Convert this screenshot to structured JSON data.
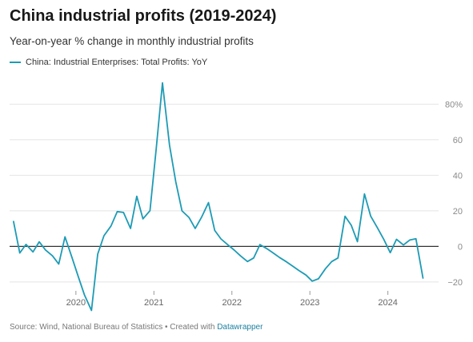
{
  "chart_data": {
    "type": "line",
    "title": "China industrial profits (2019-2024)",
    "subtitle": "Year-on-year % change in monthly industrial profits",
    "ylim": [
      -25,
      95
    ],
    "y_ticks": [
      {
        "value": 80,
        "label": "80%"
      },
      {
        "value": 60,
        "label": "60"
      },
      {
        "value": 40,
        "label": "40"
      },
      {
        "value": 20,
        "label": "20"
      },
      {
        "value": 0,
        "label": "0"
      },
      {
        "value": -20,
        "label": "−20"
      }
    ],
    "xlim": [
      2019.15,
      2024.65
    ],
    "x_ticks": [
      {
        "value": 2020.0,
        "label": "2020"
      },
      {
        "value": 2021.0,
        "label": "2021"
      },
      {
        "value": 2022.0,
        "label": "2022"
      },
      {
        "value": 2023.0,
        "label": "2023"
      },
      {
        "value": 2024.0,
        "label": "2024"
      }
    ],
    "grid": true,
    "legend_position": "top-left",
    "series": [
      {
        "name": "China: Industrial Enterprises: Total Profits: YoY",
        "color": "#1d9bb5",
        "points": [
          [
            2019.2,
            14.0
          ],
          [
            2019.28,
            -3.7
          ],
          [
            2019.36,
            1.1
          ],
          [
            2019.45,
            -3.1
          ],
          [
            2019.53,
            2.6
          ],
          [
            2019.61,
            -2.0
          ],
          [
            2019.7,
            -5.3
          ],
          [
            2019.78,
            -9.9
          ],
          [
            2019.86,
            5.4
          ],
          [
            2019.95,
            -6.3
          ],
          [
            2020.03,
            -17.0
          ],
          [
            2020.11,
            -27.4
          ],
          [
            2020.2,
            -36.0
          ],
          [
            2020.28,
            -4.3
          ],
          [
            2020.36,
            6.0
          ],
          [
            2020.45,
            11.5
          ],
          [
            2020.53,
            19.6
          ],
          [
            2020.61,
            19.1
          ],
          [
            2020.7,
            10.1
          ],
          [
            2020.78,
            28.2
          ],
          [
            2020.86,
            15.5
          ],
          [
            2020.95,
            20.1
          ],
          [
            2021.03,
            55.0
          ],
          [
            2021.11,
            92.0
          ],
          [
            2021.2,
            57.0
          ],
          [
            2021.28,
            36.4
          ],
          [
            2021.36,
            20.0
          ],
          [
            2021.45,
            16.3
          ],
          [
            2021.53,
            10.1
          ],
          [
            2021.61,
            16.3
          ],
          [
            2021.7,
            24.6
          ],
          [
            2021.78,
            9.0
          ],
          [
            2021.86,
            4.2
          ],
          [
            2021.95,
            0.8
          ],
          [
            2022.03,
            -2.1
          ],
          [
            2022.11,
            -5.3
          ],
          [
            2022.2,
            -8.5
          ],
          [
            2022.28,
            -6.5
          ],
          [
            2022.36,
            1.0
          ],
          [
            2022.45,
            -1.3
          ],
          [
            2022.53,
            -3.7
          ],
          [
            2022.61,
            -6.2
          ],
          [
            2022.7,
            -8.7
          ],
          [
            2022.78,
            -11.1
          ],
          [
            2022.86,
            -13.6
          ],
          [
            2022.95,
            -16.1
          ],
          [
            2023.03,
            -19.5
          ],
          [
            2023.11,
            -18.2
          ],
          [
            2023.2,
            -12.5
          ],
          [
            2023.28,
            -8.5
          ],
          [
            2023.36,
            -6.5
          ],
          [
            2023.45,
            17.0
          ],
          [
            2023.53,
            11.9
          ],
          [
            2023.61,
            2.7
          ],
          [
            2023.7,
            29.5
          ],
          [
            2023.78,
            17.0
          ],
          [
            2023.86,
            10.9
          ],
          [
            2023.95,
            3.7
          ],
          [
            2024.03,
            -3.5
          ],
          [
            2024.11,
            4.0
          ],
          [
            2024.2,
            0.8
          ],
          [
            2024.28,
            3.6
          ],
          [
            2024.36,
            4.3
          ],
          [
            2024.45,
            -17.8
          ]
        ]
      }
    ]
  },
  "footer": {
    "source": "Source: Wind, National Bureau of Statistics • Created with ",
    "link": "Datawrapper"
  }
}
